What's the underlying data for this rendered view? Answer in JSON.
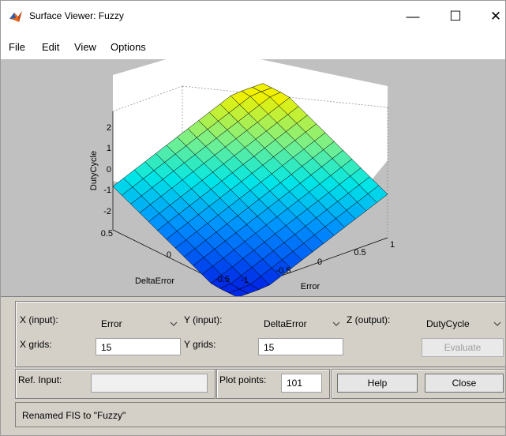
{
  "window": {
    "title": "Surface Viewer: Fuzzy",
    "controls": {
      "minimize": "—",
      "maximize": "☐",
      "close": "✕"
    }
  },
  "menu": [
    "File",
    "Edit",
    "View",
    "Options"
  ],
  "plot": {
    "zlabel": "DutyCycle",
    "xlabel": "Error",
    "ylabel": "DeltaError",
    "z_ticks": [
      "2",
      "1",
      "0",
      "-1",
      "-2"
    ],
    "x_ticks": [
      "-1",
      "-0.5",
      "0",
      "0.5",
      "1"
    ],
    "y_ticks": [
      "-0.5",
      "0",
      "0.5"
    ]
  },
  "controls": {
    "x_input_label": "X (input):",
    "x_input_value": "Error",
    "y_input_label": "Y (input):",
    "y_input_value": "DeltaError",
    "z_output_label": "Z (output):",
    "z_output_value": "DutyCycle",
    "x_grids_label": "X grids:",
    "x_grids_value": "15",
    "y_grids_label": "Y grids:",
    "y_grids_value": "15",
    "evaluate_label": "Evaluate",
    "ref_input_label": "Ref. Input:",
    "ref_input_value": "",
    "plot_points_label": "Plot points:",
    "plot_points_value": "101",
    "help_label": "Help",
    "close_label": "Close"
  },
  "status": {
    "message": "Renamed FIS to \"Fuzzy\""
  },
  "colors": {
    "plot_background": "#c0c0c0",
    "axes_background": "#ffffff"
  }
}
